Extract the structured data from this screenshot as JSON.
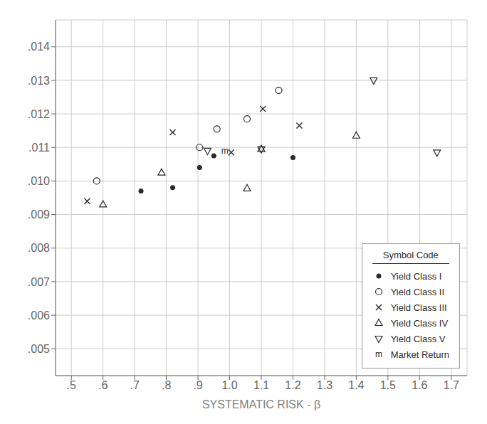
{
  "chart_data": {
    "type": "scatter",
    "xlabel": "SYSTEMATIC RISK - β",
    "xlim": [
      0.45,
      1.75
    ],
    "ylim": [
      0.0042,
      0.0148
    ],
    "xticks": [
      {
        "value": 0.5,
        "label": ".5"
      },
      {
        "value": 0.6,
        "label": ".6"
      },
      {
        "value": 0.7,
        "label": ".7"
      },
      {
        "value": 0.8,
        "label": ".8"
      },
      {
        "value": 0.9,
        "label": ".9"
      },
      {
        "value": 1.0,
        "label": "1.0"
      },
      {
        "value": 1.1,
        "label": "1.1"
      },
      {
        "value": 1.2,
        "label": "1.2"
      },
      {
        "value": 1.3,
        "label": "1.3"
      },
      {
        "value": 1.4,
        "label": "1.4"
      },
      {
        "value": 1.5,
        "label": "1.5"
      },
      {
        "value": 1.6,
        "label": "1.6"
      },
      {
        "value": 1.7,
        "label": "1.7"
      }
    ],
    "yticks": [
      {
        "value": 0.005,
        "label": ".005"
      },
      {
        "value": 0.006,
        "label": ".006"
      },
      {
        "value": 0.007,
        "label": ".007"
      },
      {
        "value": 0.008,
        "label": ".008"
      },
      {
        "value": 0.009,
        "label": ".009"
      },
      {
        "value": 0.01,
        "label": ".010"
      },
      {
        "value": 0.011,
        "label": ".011"
      },
      {
        "value": 0.012,
        "label": ".012"
      },
      {
        "value": 0.013,
        "label": ".013"
      },
      {
        "value": 0.014,
        "label": ".014"
      }
    ],
    "grid": true,
    "legend": "lower right",
    "legend_title": "Symbol Code",
    "color": "#2a2a2a",
    "series": [
      {
        "name": "Yield Class I",
        "marker": "point",
        "x": [
          0.72,
          0.82,
          0.905,
          0.95,
          1.2
        ],
        "values": [
          0.0097,
          0.0098,
          0.0104,
          0.01075,
          0.0107
        ]
      },
      {
        "name": "Yield Class II",
        "marker": "circle",
        "x": [
          0.58,
          0.905,
          0.96,
          1.055,
          1.155
        ],
        "values": [
          0.01,
          0.011,
          0.01155,
          0.01185,
          0.0127
        ]
      },
      {
        "name": "Yield Class III",
        "marker": "x",
        "x": [
          0.55,
          0.82,
          1.005,
          1.105,
          1.22
        ],
        "values": [
          0.0094,
          0.01145,
          0.01085,
          0.01215,
          0.01165
        ]
      },
      {
        "name": "Yield Class IV",
        "marker": "triangle_up",
        "x": [
          0.6,
          0.785,
          1.055,
          1.1,
          1.4
        ],
        "values": [
          0.0093,
          0.01025,
          0.00978,
          0.01095,
          0.01135
        ]
      },
      {
        "name": "Yield Class V",
        "marker": "triangle_down",
        "x": [
          0.93,
          1.1,
          1.455,
          1.655
        ],
        "values": [
          0.0109,
          0.01095,
          0.013,
          0.01085
        ]
      },
      {
        "name": "Market Return",
        "marker": "m",
        "x": [
          0.985
        ],
        "values": [
          0.0109
        ]
      }
    ]
  }
}
